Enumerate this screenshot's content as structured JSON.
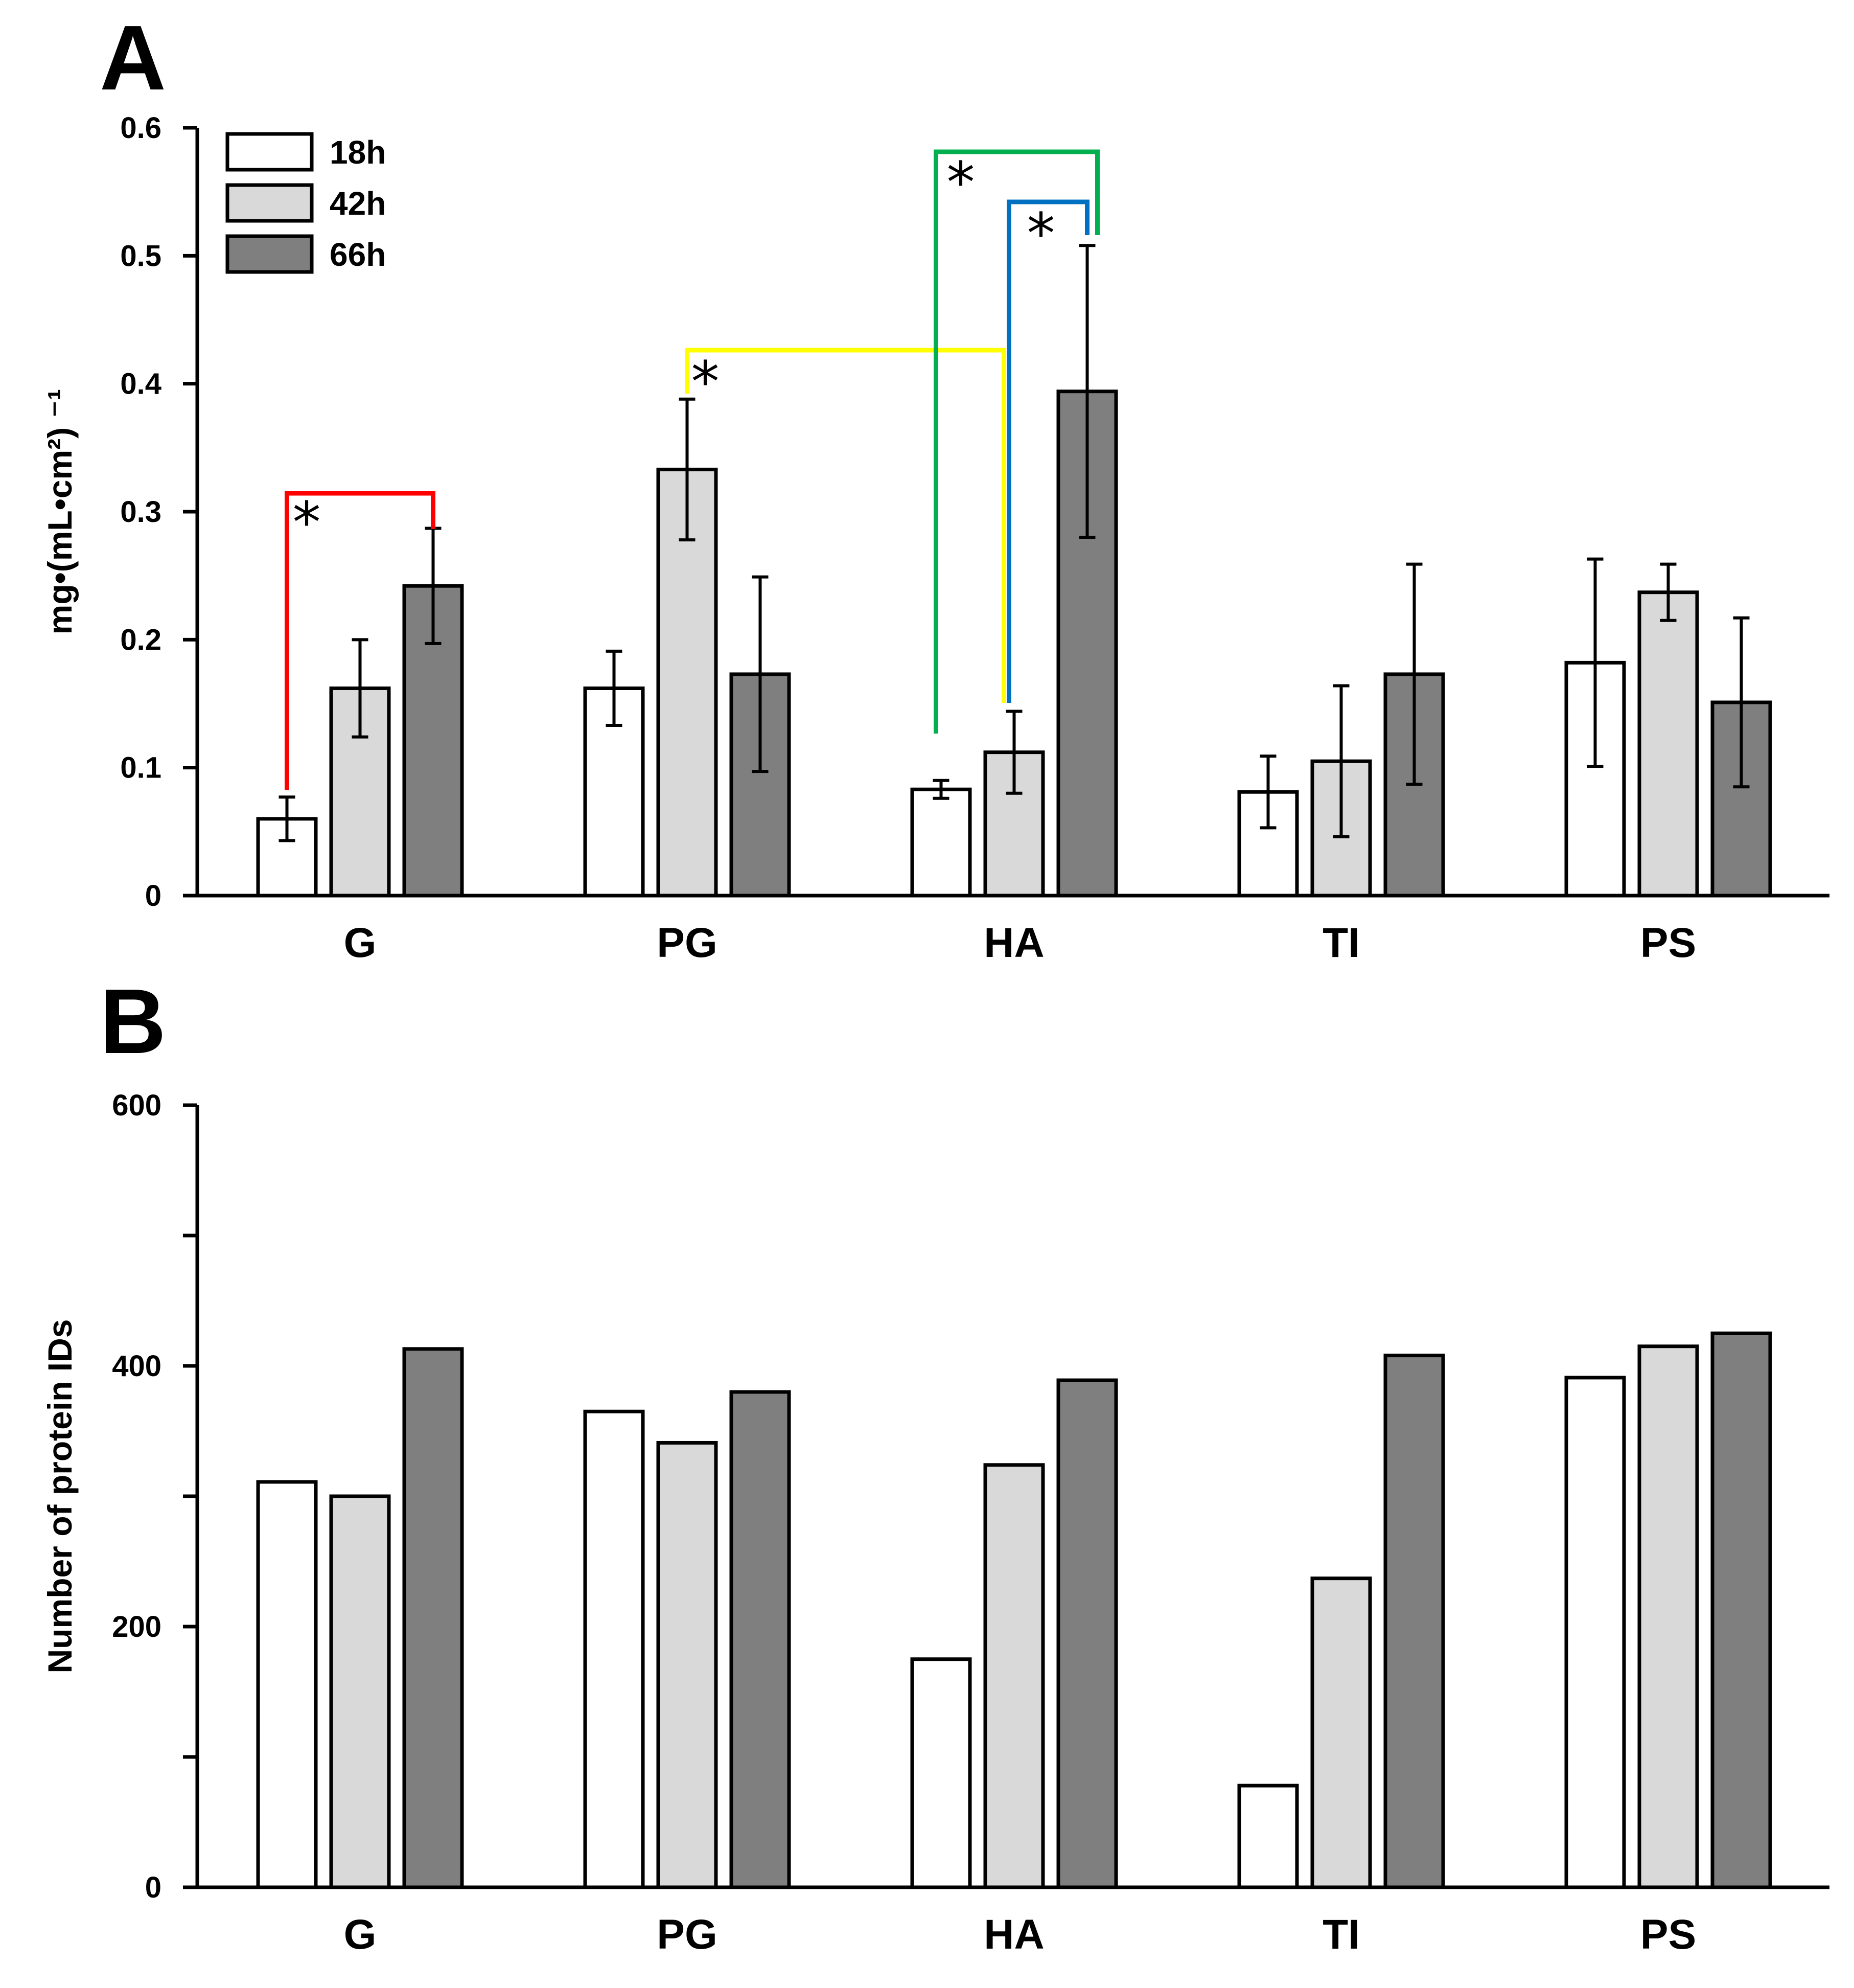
{
  "colors": {
    "18h": "#ffffff",
    "42h": "#d9d9d9",
    "66h": "#7f7f7f",
    "outline": "#000000",
    "sig_red": "#ff0000",
    "sig_yellow": "#ffff00",
    "sig_green": "#00b050",
    "sig_blue": "#0070c0"
  },
  "chart_data": [
    {
      "panel": "A",
      "type": "bar",
      "categories": [
        "G",
        "PG",
        "HA",
        "TI",
        "PS"
      ],
      "ylabel": "mg•(mL•cm²) ⁻¹",
      "ylim": [
        0,
        0.6
      ],
      "yticks": [
        0,
        0.1,
        0.2,
        0.3,
        0.4,
        0.5,
        0.6
      ],
      "ytick_labels": [
        "0",
        "0.1",
        "0.2",
        "0.3",
        "0.4",
        "0.5",
        "0.6"
      ],
      "legend": {
        "placement": "top-left",
        "entries": [
          "18h",
          "42h",
          "66h"
        ]
      },
      "series": [
        {
          "name": "18h",
          "values": [
            0.06,
            0.162,
            0.083,
            0.081,
            0.182
          ],
          "errors": [
            0.017,
            0.029,
            0.007,
            0.028,
            0.081
          ]
        },
        {
          "name": "42h",
          "values": [
            0.162,
            0.333,
            0.112,
            0.105,
            0.237
          ],
          "errors": [
            0.038,
            0.055,
            0.032,
            0.059,
            0.022
          ]
        },
        {
          "name": "66h",
          "values": [
            0.242,
            0.173,
            0.394,
            0.173,
            0.151
          ],
          "errors": [
            0.045,
            0.076,
            0.114,
            0.086,
            0.066
          ]
        }
      ],
      "significance": [
        {
          "from": "G 18h",
          "to": "G 66h",
          "label": "*",
          "color": "#ff0000"
        },
        {
          "from": "PG 42h",
          "to": "HA 42h",
          "label": "*",
          "color": "#ffff00"
        },
        {
          "from": "HA 18h",
          "to": "HA 66h",
          "label": "*",
          "color": "#00b050"
        },
        {
          "from": "HA 42h",
          "to": "HA 66h",
          "label": "*",
          "color": "#0070c0"
        }
      ]
    },
    {
      "panel": "B",
      "type": "bar",
      "categories": [
        "G",
        "PG",
        "HA",
        "TI",
        "PS"
      ],
      "ylabel": "Number of protein IDs",
      "ylim": [
        0,
        600
      ],
      "yticks": [
        0,
        100,
        200,
        300,
        400,
        500,
        600
      ],
      "ytick_labels": [
        "0",
        "",
        "200",
        "",
        "400",
        "",
        "600"
      ],
      "series": [
        {
          "name": "18h",
          "values": [
            311,
            365,
            175,
            78,
            391
          ]
        },
        {
          "name": "42h",
          "values": [
            300,
            341,
            324,
            237,
            415
          ]
        },
        {
          "name": "66h",
          "values": [
            413,
            380,
            389,
            408,
            425
          ]
        }
      ]
    }
  ]
}
